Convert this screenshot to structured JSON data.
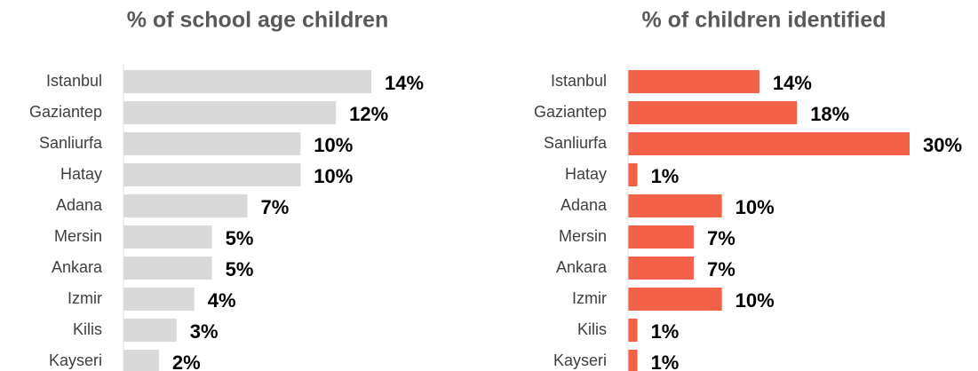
{
  "chart_data": [
    {
      "type": "bar",
      "orientation": "horizontal",
      "title": "% of school age children",
      "categories": [
        "Istanbul",
        "Gaziantep",
        "Sanliurfa",
        "Hatay",
        "Adana",
        "Mersin",
        "Ankara",
        "Izmir",
        "Kilis",
        "Kayseri"
      ],
      "values": [
        14,
        12,
        10,
        10,
        7,
        5,
        5,
        4,
        3,
        2
      ],
      "value_labels": [
        "14%",
        "12%",
        "10%",
        "10%",
        "7%",
        "5%",
        "5%",
        "4%",
        "3%",
        "2%"
      ],
      "color": "#d9d9d9",
      "xlim": [
        0,
        14
      ]
    },
    {
      "type": "bar",
      "orientation": "horizontal",
      "title": "% of children identified",
      "categories": [
        "Istanbul",
        "Gaziantep",
        "Sanliurfa",
        "Hatay",
        "Adana",
        "Mersin",
        "Ankara",
        "Izmir",
        "Kilis",
        "Kayseri"
      ],
      "values": [
        14,
        18,
        30,
        1,
        10,
        7,
        7,
        10,
        1,
        1
      ],
      "value_labels": [
        "14%",
        "18%",
        "30%",
        "1%",
        "10%",
        "7%",
        "7%",
        "10%",
        "1%",
        "1%"
      ],
      "color": "#f26148",
      "xlim": [
        0,
        30
      ]
    }
  ]
}
